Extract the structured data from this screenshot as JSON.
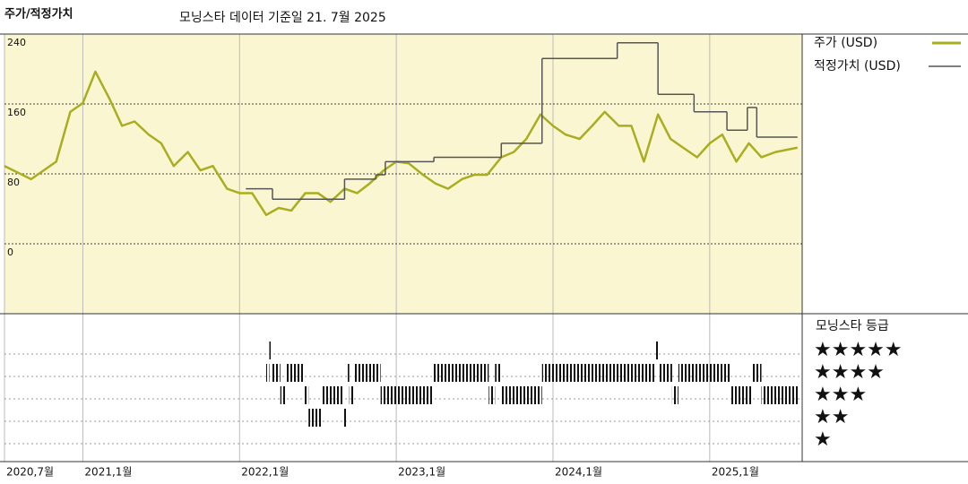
{
  "chart_data": {
    "type": "line",
    "title": "주가/적정가치",
    "subtitle": "모닝스타 데이터 기준일 21. 7월 2025",
    "xlim": [
      2020.5,
      2025.59
    ],
    "xticks": [
      {
        "value": 2020.5,
        "label": "2020,7월"
      },
      {
        "value": 2021.0,
        "label": "2021,1월"
      },
      {
        "value": 2022.0,
        "label": "2022,1월"
      },
      {
        "value": 2023.0,
        "label": "2023,1월"
      },
      {
        "value": 2024.0,
        "label": "2024,1월"
      },
      {
        "value": 2025.0,
        "label": "2025,1월"
      }
    ],
    "ylim": [
      -80,
      240
    ],
    "yticks": [
      0,
      80,
      160,
      240
    ],
    "grid": true,
    "series": [
      {
        "name": "주가 (USD)",
        "color": "#a9ad1f",
        "x": [
          2020.5,
          2020.67,
          2020.83,
          2020.92,
          2021.0,
          2021.08,
          2021.17,
          2021.25,
          2021.33,
          2021.42,
          2021.5,
          2021.58,
          2021.67,
          2021.75,
          2021.83,
          2021.92,
          2022.0,
          2022.08,
          2022.17,
          2022.25,
          2022.33,
          2022.42,
          2022.5,
          2022.58,
          2022.67,
          2022.75,
          2022.83,
          2022.92,
          2023.0,
          2023.08,
          2023.17,
          2023.25,
          2023.33,
          2023.42,
          2023.5,
          2023.58,
          2023.67,
          2023.75,
          2023.83,
          2023.92,
          2024.0,
          2024.08,
          2024.17,
          2024.25,
          2024.33,
          2024.42,
          2024.5,
          2024.58,
          2024.67,
          2024.75,
          2024.83,
          2024.92,
          2025.0,
          2025.08,
          2025.17,
          2025.25,
          2025.33,
          2025.42,
          2025.56
        ],
        "values": [
          89,
          74,
          94,
          151,
          161,
          197,
          166,
          135,
          140,
          125,
          115,
          89,
          105,
          84,
          89,
          63,
          58,
          58,
          33,
          41,
          38,
          58,
          58,
          48,
          63,
          58,
          69,
          84,
          94,
          92,
          79,
          69,
          63,
          74,
          79,
          79,
          99,
          105,
          120,
          148,
          135,
          125,
          120,
          135,
          151,
          135,
          135,
          94,
          148,
          120,
          110,
          99,
          115,
          125,
          94,
          115,
          99,
          105,
          110
        ]
      },
      {
        "name": "적정가치 (USD)",
        "color": "#555555",
        "step": true,
        "x": [
          2022.04,
          2022.21,
          2022.67,
          2022.87,
          2022.93,
          2023.24,
          2023.67,
          2023.93,
          2024.41,
          2024.67,
          2024.9,
          2025.11,
          2025.24,
          2025.3,
          2025.56
        ],
        "values": [
          63,
          51,
          74,
          79,
          94,
          99,
          115,
          212,
          230,
          171,
          151,
          130,
          156,
          122,
          122
        ]
      }
    ],
    "rating": {
      "title": "모닝스타 등급",
      "levels": [
        {
          "value": 5,
          "label": "★★★★★"
        },
        {
          "value": 4,
          "label": "★★★★"
        },
        {
          "value": 3,
          "label": "★★★"
        },
        {
          "value": 2,
          "label": "★★"
        },
        {
          "value": 1,
          "label": "★"
        }
      ],
      "edges": [
        2022.17,
        2022.19,
        2022.2,
        2022.26,
        2022.29,
        2022.41,
        2022.44,
        2022.53,
        2022.66,
        2022.68,
        2022.7,
        2022.73,
        2022.9,
        2023.23,
        2023.59,
        2023.63,
        2023.67,
        2023.93,
        2024.65,
        2024.67,
        2024.76,
        2024.8,
        2025.13,
        2025.27,
        2025.33,
        2025.57
      ],
      "values": [
        4,
        5,
        4,
        3,
        4,
        3,
        2,
        3,
        2,
        4,
        3,
        4,
        3,
        4,
        3,
        4,
        3,
        4,
        5,
        4,
        3,
        4,
        3,
        4,
        3
      ]
    }
  }
}
